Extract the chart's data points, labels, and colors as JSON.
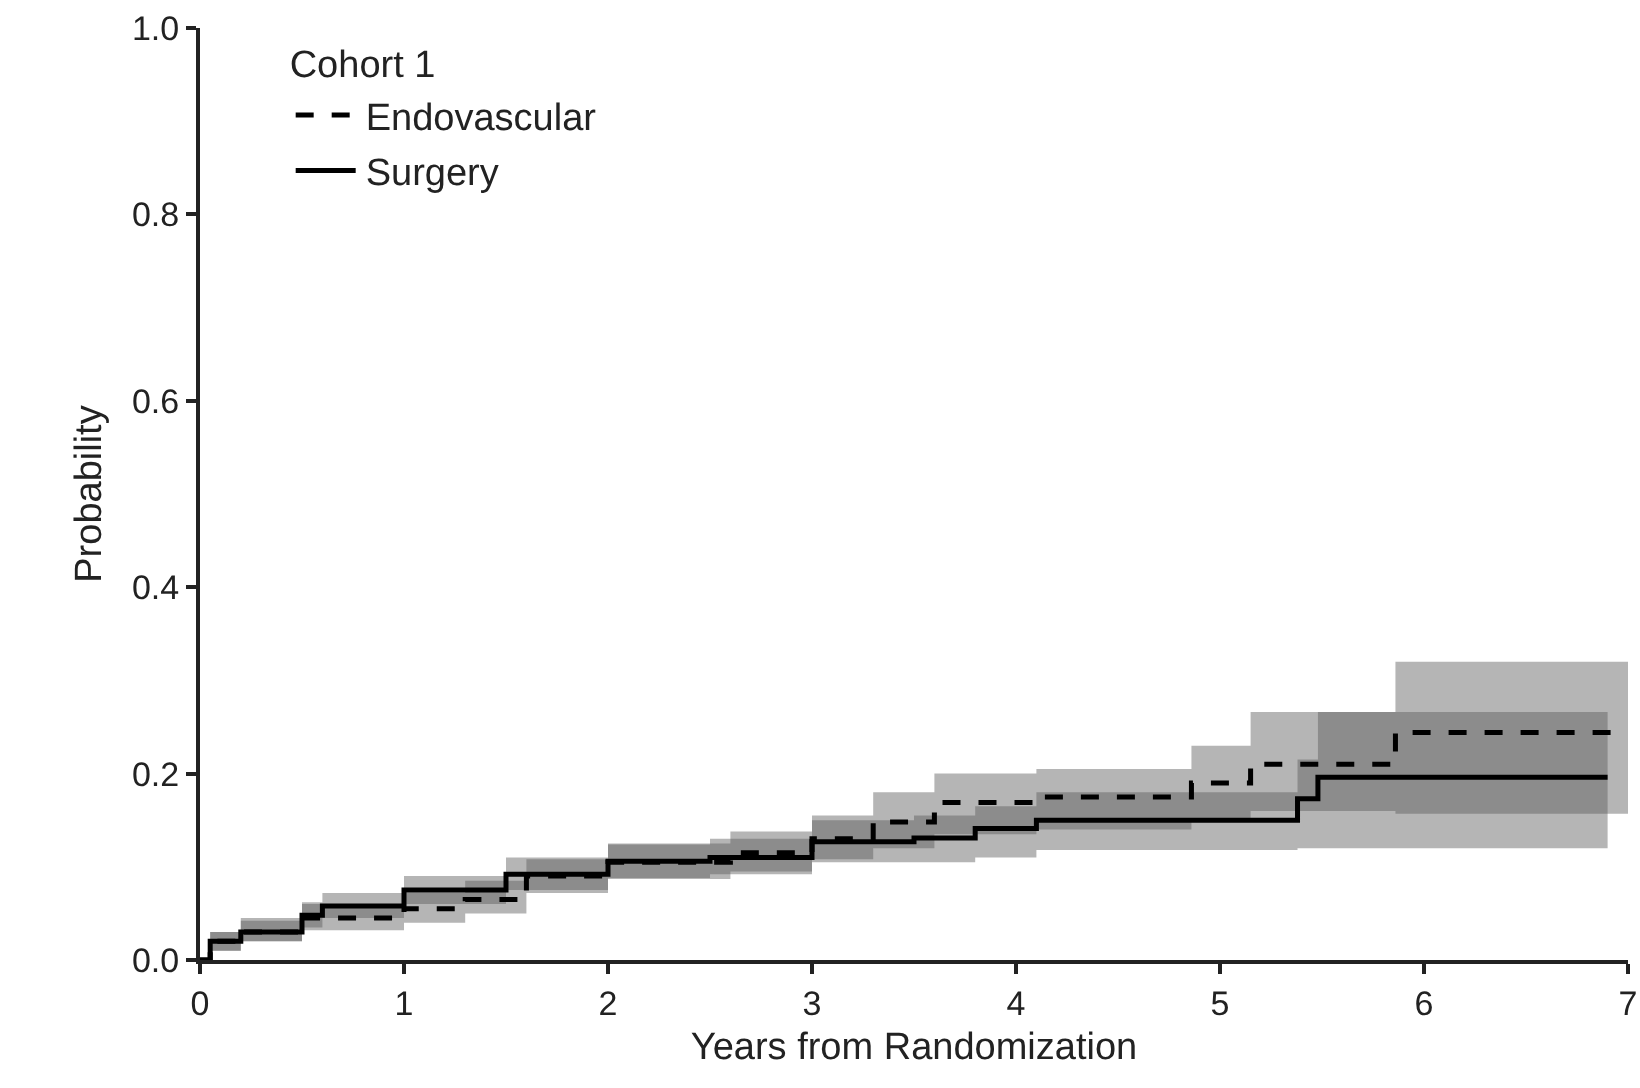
{
  "chart_data": {
    "type": "step",
    "legend_title": "Cohort 1",
    "xlabel": "Years from Randomization",
    "ylabel": "Probability",
    "xlim": [
      0,
      7
    ],
    "xticks": [
      0,
      1,
      2,
      3,
      4,
      5,
      6,
      7
    ],
    "ylim": [
      0,
      1
    ],
    "yticks": [
      {
        "value": 0,
        "label": "0.0"
      },
      {
        "value": 0.2,
        "label": "0.2"
      },
      {
        "value": 0.4,
        "label": "0.4"
      },
      {
        "value": 0.6,
        "label": "0.6"
      },
      {
        "value": 0.8,
        "label": "0.8"
      },
      {
        "value": 1,
        "label": "1.0"
      }
    ],
    "grid": false,
    "legend": "top left",
    "marker": "none",
    "series": [
      {
        "name": "Surgery",
        "color": "#000000",
        "line_style": "solid",
        "x": [
          0,
          0.05,
          0.2,
          0.5,
          0.6,
          1,
          1.5,
          2,
          2.5,
          3,
          3.5,
          3.8,
          4.1,
          5.38,
          5.48,
          6.9
        ],
        "values": [
          0,
          0.02,
          0.03,
          0.048,
          0.058,
          0.075,
          0.092,
          0.106,
          0.11,
          0.127,
          0.131,
          0.141,
          0.15,
          0.173,
          0.196,
          0.196
        ],
        "lower": [
          0,
          0.01,
          0.02,
          0.035,
          0.045,
          0.06,
          0.075,
          0.088,
          0.092,
          0.105,
          0.105,
          0.11,
          0.118,
          0.12,
          0.12,
          0.12
        ],
        "upper": [
          0,
          0.03,
          0.045,
          0.062,
          0.072,
          0.09,
          0.11,
          0.124,
          0.13,
          0.15,
          0.155,
          0.165,
          0.18,
          0.215,
          0.266,
          0.266
        ]
      },
      {
        "name": "Endovascular",
        "color": "#000000",
        "line_style": "dashed",
        "x": [
          0,
          0.05,
          0.2,
          0.5,
          1,
          1.3,
          1.6,
          2,
          2.6,
          3,
          3.3,
          3.6,
          4.1,
          4.86,
          5.15,
          5.86,
          7
        ],
        "values": [
          0,
          0.02,
          0.03,
          0.045,
          0.055,
          0.065,
          0.09,
          0.105,
          0.115,
          0.13,
          0.148,
          0.169,
          0.175,
          0.19,
          0.21,
          0.244,
          0.244
        ],
        "lower": [
          0,
          0.01,
          0.02,
          0.032,
          0.04,
          0.05,
          0.072,
          0.087,
          0.095,
          0.108,
          0.12,
          0.135,
          0.14,
          0.15,
          0.16,
          0.157,
          0.157
        ],
        "upper": [
          0,
          0.03,
          0.042,
          0.06,
          0.072,
          0.085,
          0.108,
          0.125,
          0.138,
          0.155,
          0.18,
          0.2,
          0.205,
          0.23,
          0.266,
          0.32,
          0.32
        ]
      }
    ]
  }
}
